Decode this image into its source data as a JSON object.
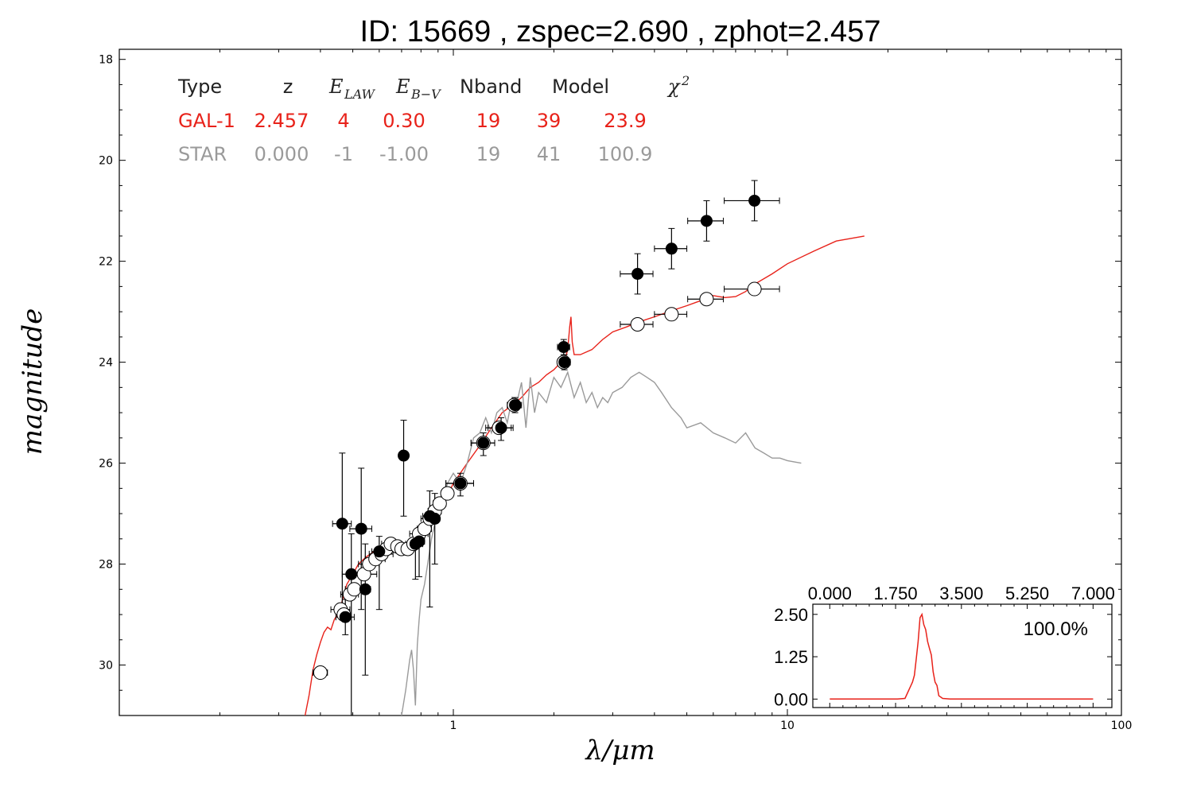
{
  "title": "ID:  15669 , zspec=2.690 , zphot=2.457",
  "chart_data": {
    "type": "scatter",
    "xlabel": "λ/μm",
    "ylabel": "magnitude",
    "xscale": "log",
    "xlim": [
      0.1,
      100
    ],
    "ylim": [
      31,
      17.8
    ],
    "y_inverted": true,
    "xticks": [
      1,
      10,
      100
    ],
    "xtick_labels": [
      "1",
      "10",
      "100"
    ],
    "yticks": [
      18,
      20,
      22,
      24,
      26,
      28,
      30
    ],
    "ytick_labels": [
      "18",
      "20",
      "22",
      "24",
      "26",
      "28",
      "30"
    ],
    "legend_table": {
      "headers": {
        "type": "Type",
        "z": "z",
        "elaw": "E",
        "elaw_sub": "LAW",
        "ebv": "E",
        "ebv_sub": "B−V",
        "nband": "Nband",
        "model": "Model",
        "chi2": "χ",
        "chi2_sup": "2"
      },
      "rows": [
        {
          "color": "#e8221a",
          "type": "GAL-1",
          "z": "2.457",
          "elaw": "4",
          "ebv": "0.30",
          "nband": "19",
          "model": "39",
          "chi2": "23.9"
        },
        {
          "color": "#9a9a9a",
          "type": "STAR",
          "z": "0.000",
          "elaw": "-1",
          "ebv": "-1.00",
          "nband": "19",
          "model": "41",
          "chi2": "100.9"
        }
      ]
    },
    "series": [
      {
        "kind": "line",
        "color": "#e8221a",
        "x": [
          0.36,
          0.37,
          0.38,
          0.39,
          0.4,
          0.41,
          0.42,
          0.43,
          0.44,
          0.45,
          0.46,
          0.47,
          0.48,
          0.5,
          0.52,
          0.55,
          0.58,
          0.62,
          0.66,
          0.7,
          0.75,
          0.8,
          0.85,
          0.9,
          0.95,
          1.0,
          1.1,
          1.2,
          1.3,
          1.4,
          1.5,
          1.6,
          1.7,
          1.8,
          1.9,
          2.0,
          2.1,
          2.15,
          2.2,
          2.23,
          2.25,
          2.27,
          2.3,
          2.4,
          2.6,
          2.8,
          3.0,
          3.3,
          3.6,
          4.0,
          4.5,
          5.0,
          5.5,
          6.0,
          6.5,
          7.0,
          7.5,
          8.0,
          9.0,
          10.0,
          12.0,
          14.0,
          17.0
        ],
        "y": [
          31.0,
          30.6,
          30.1,
          29.8,
          29.55,
          29.35,
          29.25,
          29.3,
          29.1,
          29.0,
          28.85,
          28.6,
          28.4,
          28.2,
          28.0,
          27.85,
          27.75,
          27.7,
          27.72,
          27.7,
          27.55,
          27.35,
          27.15,
          26.95,
          26.7,
          26.4,
          26.0,
          25.65,
          25.3,
          25.0,
          24.85,
          24.7,
          24.5,
          24.4,
          24.25,
          24.15,
          24.0,
          24.0,
          23.75,
          23.3,
          23.1,
          23.6,
          23.85,
          23.85,
          23.75,
          23.55,
          23.4,
          23.3,
          23.2,
          23.1,
          22.98,
          22.88,
          22.78,
          22.68,
          22.72,
          22.7,
          22.6,
          22.45,
          22.25,
          22.05,
          21.8,
          21.6,
          21.5
        ]
      },
      {
        "kind": "line",
        "color": "#9a9a9a",
        "x": [
          0.7,
          0.72,
          0.74,
          0.75,
          0.76,
          0.77,
          0.78,
          0.79,
          0.8,
          0.82,
          0.84,
          0.86,
          0.88,
          0.9,
          0.93,
          0.96,
          1.0,
          1.05,
          1.1,
          1.15,
          1.2,
          1.25,
          1.3,
          1.35,
          1.4,
          1.45,
          1.5,
          1.55,
          1.6,
          1.65,
          1.7,
          1.75,
          1.8,
          1.9,
          2.0,
          2.1,
          2.2,
          2.3,
          2.4,
          2.5,
          2.6,
          2.7,
          2.8,
          2.9,
          3.0,
          3.2,
          3.4,
          3.6,
          3.8,
          4.0,
          4.2,
          4.5,
          4.8,
          5.0,
          5.5,
          6.0,
          6.5,
          7.0,
          7.5,
          8.0,
          8.5,
          9.0,
          9.5,
          10.0,
          11.0
        ],
        "y": [
          31.0,
          30.5,
          29.9,
          29.7,
          30.1,
          30.8,
          29.6,
          29.1,
          28.7,
          28.4,
          27.95,
          27.5,
          27.2,
          27.1,
          26.8,
          26.4,
          26.2,
          26.4,
          26.0,
          25.5,
          25.4,
          25.1,
          25.4,
          25.0,
          24.9,
          25.2,
          24.7,
          24.8,
          24.4,
          25.3,
          24.3,
          25.0,
          24.6,
          24.8,
          24.3,
          24.5,
          24.2,
          24.7,
          24.4,
          24.8,
          24.6,
          24.9,
          24.7,
          24.8,
          24.6,
          24.5,
          24.3,
          24.2,
          24.3,
          24.4,
          24.6,
          24.9,
          25.1,
          25.3,
          25.2,
          25.4,
          25.5,
          25.6,
          25.4,
          25.7,
          25.8,
          25.9,
          25.9,
          25.95,
          26.0
        ]
      },
      {
        "kind": "filled_points",
        "name": "observed",
        "color": "#000000",
        "x": [
          0.465,
          0.475,
          0.495,
          0.53,
          0.545,
          0.6,
          0.71,
          0.77,
          0.79,
          0.85,
          0.88,
          1.05,
          1.23,
          1.39,
          1.53,
          2.14,
          2.15,
          3.56,
          4.5,
          5.73,
          7.97
        ],
        "y": [
          27.2,
          29.05,
          28.2,
          27.3,
          28.5,
          27.75,
          25.85,
          27.6,
          27.55,
          27.05,
          27.1,
          26.4,
          25.6,
          25.3,
          24.85,
          23.7,
          24.0,
          22.25,
          21.75,
          21.2,
          20.8
        ],
        "xerr": [
          0.03,
          0.03,
          0.03,
          0.04,
          0.02,
          0.03,
          0.02,
          0.04,
          0.03,
          0.04,
          0.03,
          0.1,
          0.1,
          0.12,
          0.07,
          0.09,
          0.09,
          0.4,
          0.5,
          0.7,
          1.5
        ],
        "yerr_low": [
          1.4,
          0.35,
          0.8,
          1.2,
          0.9,
          0.3,
          0.7,
          0.2,
          0.2,
          0.5,
          0.5,
          0.2,
          0.2,
          0.2,
          0.15,
          0.15,
          0.15,
          0.4,
          0.4,
          0.4,
          0.4
        ],
        "yerr_high": [
          1.6,
          0.35,
          4.15,
          1.6,
          1.7,
          1.15,
          1.2,
          0.7,
          0.7,
          1.8,
          0.9,
          0.25,
          0.25,
          0.25,
          0.15,
          0.15,
          0.15,
          0.4,
          0.4,
          0.4,
          0.4
        ]
      },
      {
        "kind": "open_points",
        "name": "model magnitudes",
        "color": "#000000",
        "x": [
          0.4,
          0.46,
          0.47,
          0.49,
          0.505,
          0.54,
          0.56,
          0.585,
          0.61,
          0.63,
          0.65,
          0.68,
          0.7,
          0.73,
          0.76,
          0.79,
          0.82,
          0.85,
          0.88,
          0.91,
          0.96,
          1.05,
          1.23,
          1.37,
          1.52,
          2.14,
          3.56,
          4.5,
          5.73,
          7.97
        ],
        "y": [
          30.15,
          28.9,
          29.0,
          28.6,
          28.5,
          28.2,
          28.0,
          27.9,
          27.8,
          27.7,
          27.6,
          27.65,
          27.7,
          27.7,
          27.6,
          27.4,
          27.3,
          27.1,
          26.95,
          26.8,
          26.6,
          26.4,
          25.6,
          25.3,
          24.85,
          24.0,
          23.25,
          23.05,
          22.75,
          22.55
        ],
        "xerr": [
          0.02,
          0.03,
          0.02,
          0.03,
          0.03,
          0.05,
          0.04,
          0.04,
          0.05,
          0.03,
          0.04,
          0.05,
          0.03,
          0.04,
          0.04,
          0.05,
          0.04,
          0.05,
          0.04,
          0.04,
          0.04,
          0.1,
          0.1,
          0.12,
          0.07,
          0.09,
          0.4,
          0.5,
          0.7,
          1.5
        ]
      }
    ],
    "inset": {
      "type": "line",
      "percent_label": "100.0%",
      "xticks": [
        0.0,
        1.75,
        3.5,
        5.25,
        7.0
      ],
      "xtick_labels": [
        "0.000",
        "1.750",
        "3.500",
        "5.250",
        "7.000"
      ],
      "yticks": [
        0.0,
        1.25,
        2.5
      ],
      "ytick_labels": [
        "0.00",
        "1.25",
        "2.50"
      ],
      "xlim": [
        -0.45,
        7.5
      ],
      "ylim": [
        -0.25,
        2.8
      ],
      "color": "#e8221a",
      "x": [
        0.0,
        1.8,
        2.0,
        2.2,
        2.25,
        2.3,
        2.35,
        2.4,
        2.45,
        2.5,
        2.55,
        2.6,
        2.65,
        2.7,
        2.75,
        2.8,
        2.85,
        2.9,
        3.0,
        3.2,
        7.0
      ],
      "y": [
        0.0,
        0.0,
        0.02,
        0.5,
        0.7,
        1.2,
        1.7,
        2.4,
        2.5,
        2.2,
        2.05,
        1.7,
        1.5,
        1.3,
        0.8,
        0.5,
        0.4,
        0.1,
        0.02,
        0.0,
        0.0
      ]
    }
  }
}
